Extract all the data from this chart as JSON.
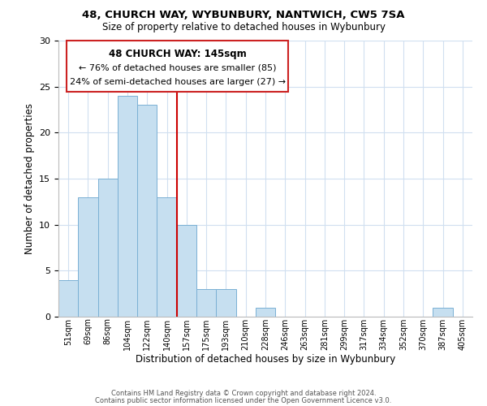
{
  "title1": "48, CHURCH WAY, WYBUNBURY, NANTWICH, CW5 7SA",
  "title2": "Size of property relative to detached houses in Wybunbury",
  "xlabel": "Distribution of detached houses by size in Wybunbury",
  "ylabel": "Number of detached properties",
  "bar_labels": [
    "51sqm",
    "69sqm",
    "86sqm",
    "104sqm",
    "122sqm",
    "140sqm",
    "157sqm",
    "175sqm",
    "193sqm",
    "210sqm",
    "228sqm",
    "246sqm",
    "263sqm",
    "281sqm",
    "299sqm",
    "317sqm",
    "334sqm",
    "352sqm",
    "370sqm",
    "387sqm",
    "405sqm"
  ],
  "bar_values": [
    4,
    13,
    15,
    24,
    23,
    13,
    10,
    3,
    3,
    0,
    1,
    0,
    0,
    0,
    0,
    0,
    0,
    0,
    0,
    1,
    0
  ],
  "bar_color": "#c6dff0",
  "bar_edge_color": "#7ab0d4",
  "vline_x": 5.5,
  "vline_color": "#cc0000",
  "ylim": [
    0,
    30
  ],
  "yticks": [
    0,
    5,
    10,
    15,
    20,
    25,
    30
  ],
  "annotation_title": "48 CHURCH WAY: 145sqm",
  "annotation_line1": "← 76% of detached houses are smaller (85)",
  "annotation_line2": "24% of semi-detached houses are larger (27) →",
  "footer1": "Contains HM Land Registry data © Crown copyright and database right 2024.",
  "footer2": "Contains public sector information licensed under the Open Government Licence v3.0.",
  "bg_color": "#ffffff",
  "grid_color": "#d0dff0"
}
